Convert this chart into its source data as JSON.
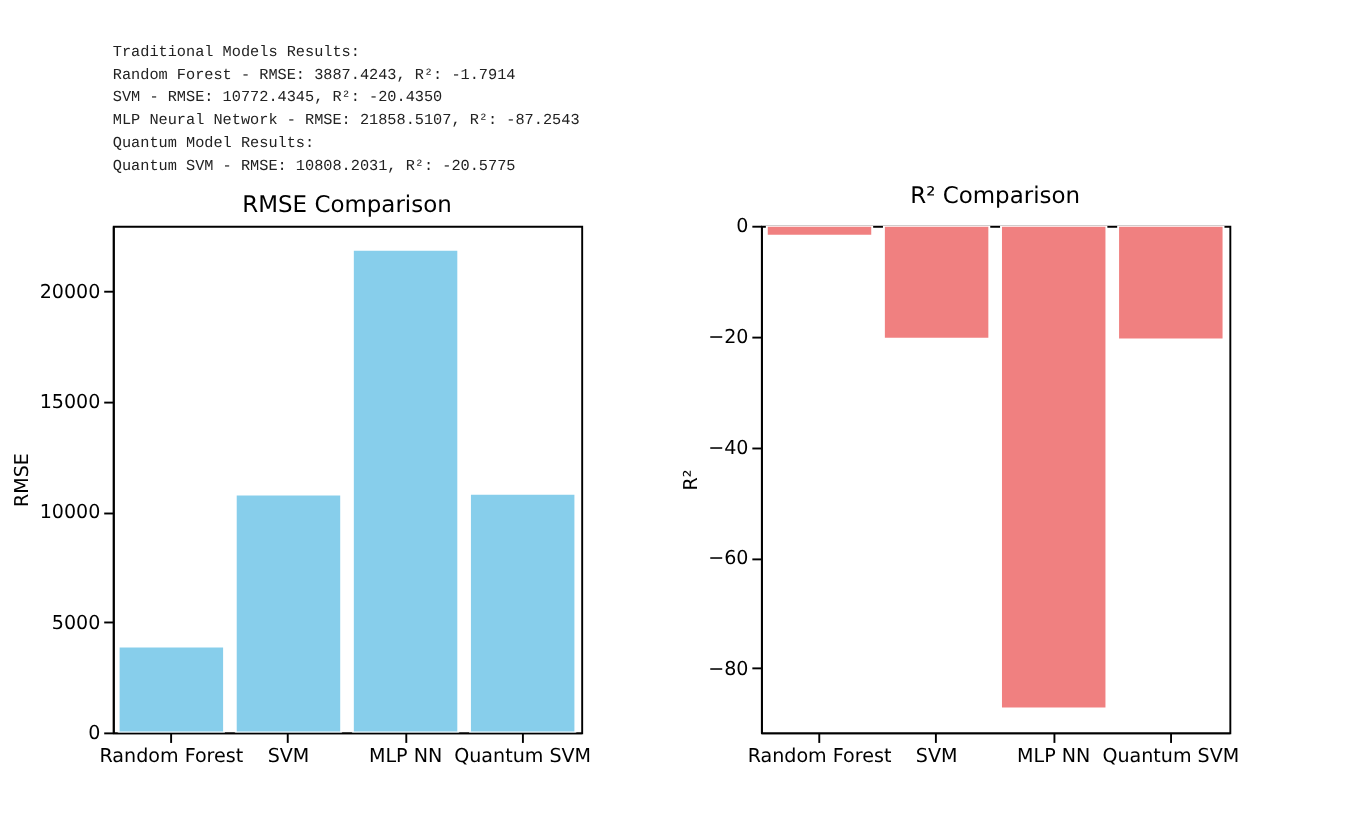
{
  "chart_data": [
    {
      "type": "bar",
      "title": "RMSE Comparison",
      "ylabel": "RMSE",
      "categories": [
        "Random Forest",
        "SVM",
        "MLP NN",
        "Quantum SVM"
      ],
      "values": [
        3887.4243,
        10772.4345,
        21858.5107,
        10808.2031
      ],
      "color": "#87ceeb",
      "ylim": [
        0,
        22951
      ],
      "yticks": [
        0,
        5000,
        10000,
        15000,
        20000
      ],
      "grid": false,
      "annotations": [
        "Traditional Models Results:",
        "Random Forest - RMSE: 3887.4243, R²: -1.7914",
        "SVM - RMSE: 10772.4345, R²: -20.4350",
        "MLP Neural Network - RMSE: 21858.5107, R²: -87.2543",
        "Quantum Model Results:",
        "Quantum SVM - RMSE: 10808.2031, R²: -20.5775"
      ]
    },
    {
      "type": "bar",
      "title": "R² Comparison",
      "ylabel": "R²",
      "categories": [
        "Random Forest",
        "SVM",
        "MLP NN",
        "Quantum SVM"
      ],
      "values": [
        -1.7914,
        -20.435,
        -87.2543,
        -20.5775
      ],
      "color": "#f08080",
      "ylim": [
        -91.6,
        0
      ],
      "yticks": [
        -80,
        -60,
        -40,
        -20,
        0
      ],
      "grid": false
    }
  ]
}
